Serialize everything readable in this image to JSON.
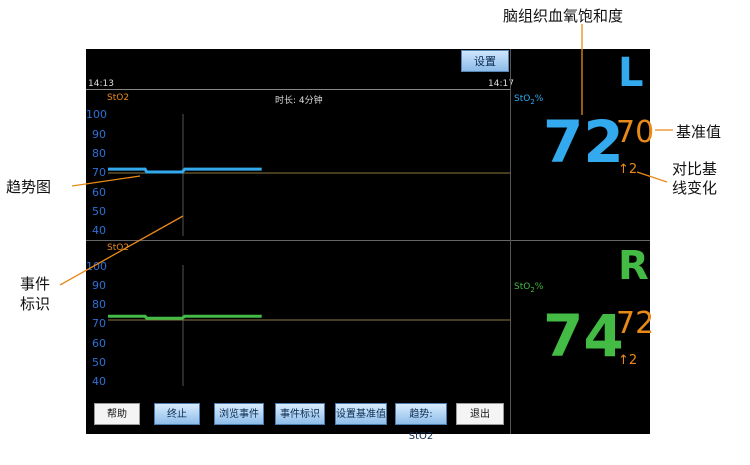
{
  "colors": {
    "blue": "#33aaee",
    "green": "#44bb44",
    "orange": "#e88a1a",
    "ytick": "#2f6fd6",
    "callout_line": "#e88a1a"
  },
  "toolbar": {
    "settings_label": "设置"
  },
  "timeline": {
    "start_time": "14:13",
    "end_time": "14:17"
  },
  "top_chart": {
    "label": "StO2",
    "duration": "时长: 4分钟",
    "y_ticks": [
      "100",
      "90",
      "80",
      "70",
      "60",
      "50",
      "40"
    ]
  },
  "bottom_chart": {
    "label": "StO2",
    "y_ticks": [
      "100",
      "90",
      "80",
      "70",
      "60",
      "50",
      "40"
    ]
  },
  "left_panel": {
    "side": "L",
    "param_label": "StO",
    "param_sub": "2",
    "param_unit": "%",
    "value": "72",
    "baseline": "70",
    "change": "↑2",
    "icon": "arrow-up-icon"
  },
  "right_panel": {
    "side": "R",
    "param_label": "StO",
    "param_sub": "2",
    "param_unit": "%",
    "value": "74",
    "baseline": "72",
    "change": "↑2",
    "icon": "arrow-up-icon"
  },
  "buttons": [
    {
      "label": "帮助"
    },
    {
      "label": "终止"
    },
    {
      "label": "浏览事件"
    },
    {
      "label": "事件标识"
    },
    {
      "label": "设置基准值"
    },
    {
      "label": "趋势: StO2"
    },
    {
      "label": "退出"
    }
  ],
  "callouts": {
    "title": "脑组织血氧饱和度",
    "baseline": "基准值",
    "change_line1": "对比基",
    "change_line2": "线变化",
    "trend": "趋势图",
    "event_line1": "事件",
    "event_line2": "标识"
  },
  "chart_data": {
    "type": "line",
    "title": "",
    "xlabel": "",
    "ylabel": "",
    "ylim": [
      35,
      105
    ],
    "charts": [
      {
        "label": "StO2",
        "series": [
          {
            "name": "",
            "x": [
              0,
              0.55,
              0.7,
              0.73,
              1.0,
              1.4,
              1.45,
              1.6,
              2.1,
              2.9
            ],
            "values": [
              72,
              72,
              72,
              70.5,
              70.5,
              70.5,
              72,
              72,
              72,
              72
            ]
          }
        ],
        "baseline": 70
      },
      {
        "label": "StO2",
        "series": [
          {
            "name": "",
            "x": [
              0,
              0.55,
              0.7,
              0.73,
              1.0,
              1.4,
              1.45,
              1.6,
              2.1,
              2.9
            ],
            "values": [
              74,
              74,
              74,
              73,
              73,
              73,
              74,
              74,
              74,
              74
            ]
          }
        ],
        "baseline": 72
      }
    ]
  }
}
